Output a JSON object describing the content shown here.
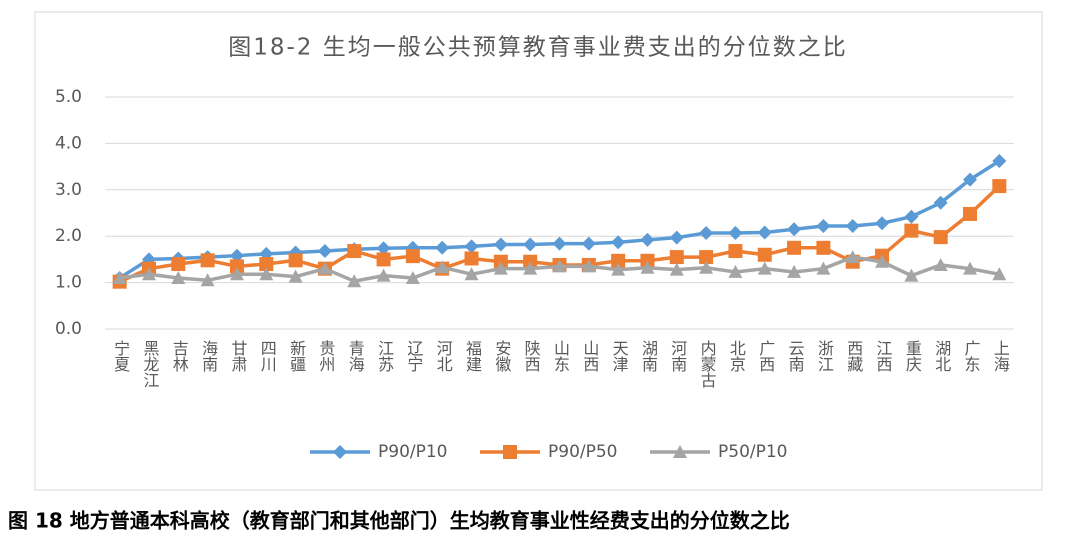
{
  "chart_data": {
    "type": "line",
    "title": "图18-2 生均一般公共预算教育事业费支出的分位数之比",
    "categories": [
      "宁夏",
      "黑龙江",
      "吉林",
      "海南",
      "甘肃",
      "四川",
      "新疆",
      "贵州",
      "青海",
      "江苏",
      "辽宁",
      "河北",
      "福建",
      "安徽",
      "陕西",
      "山东",
      "山西",
      "天津",
      "湖南",
      "河南",
      "内蒙古",
      "北京",
      "广西",
      "云南",
      "浙江",
      "西藏",
      "江西",
      "重庆",
      "湖北",
      "广东",
      "上海"
    ],
    "series": [
      {
        "name": "P90/P10",
        "color": "#5b9bd5",
        "marker": "diamond",
        "values": [
          1.1,
          1.5,
          1.52,
          1.55,
          1.58,
          1.62,
          1.65,
          1.68,
          1.72,
          1.74,
          1.75,
          1.75,
          1.78,
          1.82,
          1.82,
          1.84,
          1.84,
          1.87,
          1.92,
          1.97,
          2.07,
          2.07,
          2.08,
          2.15,
          2.22,
          2.22,
          2.28,
          2.42,
          2.72,
          3.22,
          3.62
        ]
      },
      {
        "name": "P90/P50",
        "color": "#ed7d31",
        "marker": "square",
        "values": [
          1.02,
          1.3,
          1.4,
          1.48,
          1.35,
          1.4,
          1.48,
          1.3,
          1.68,
          1.5,
          1.57,
          1.3,
          1.52,
          1.45,
          1.45,
          1.38,
          1.38,
          1.47,
          1.47,
          1.55,
          1.55,
          1.68,
          1.6,
          1.75,
          1.75,
          1.45,
          1.58,
          2.12,
          1.98,
          2.48,
          3.08
        ]
      },
      {
        "name": "P50/P10",
        "color": "#a5a5a5",
        "marker": "triangle",
        "values": [
          1.1,
          1.18,
          1.1,
          1.05,
          1.18,
          1.18,
          1.13,
          1.3,
          1.03,
          1.15,
          1.1,
          1.33,
          1.18,
          1.3,
          1.3,
          1.35,
          1.35,
          1.28,
          1.32,
          1.28,
          1.32,
          1.23,
          1.3,
          1.23,
          1.3,
          1.55,
          1.45,
          1.15,
          1.38,
          1.3,
          1.18
        ]
      }
    ],
    "ylim": [
      0,
      5
    ],
    "yticks": [
      {
        "value": 0,
        "label": "0.0"
      },
      {
        "value": 1,
        "label": "1.0"
      },
      {
        "value": 2,
        "label": "2.0"
      },
      {
        "value": 3,
        "label": "3.0"
      },
      {
        "value": 4,
        "label": "4.0"
      },
      {
        "value": 5,
        "label": "5.0"
      }
    ],
    "grid": true,
    "legend": "bottom"
  },
  "caption": "图 18 地方普通本科高校（教育部门和其他部门）生均教育事业性经费支出的分位数之比"
}
